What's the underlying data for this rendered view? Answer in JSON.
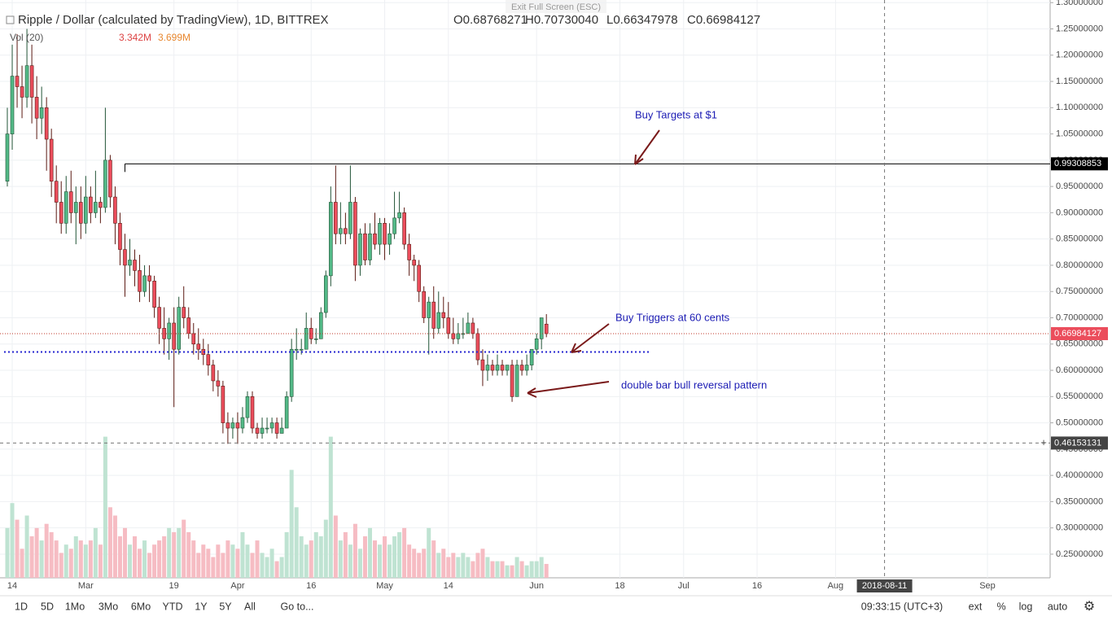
{
  "header": {
    "exit": "Exit Full Screen (ESC)",
    "title": "Ripple / Dollar (calculated by TradingView), 1D, BITTREX",
    "open": "O0.68768271",
    "high": "H0.70730040",
    "low": "L0.66347978",
    "close": "C0.66984127",
    "vol_label": "Vol (20)",
    "vol_value": "3.342M",
    "vol_ma": "3.699M"
  },
  "toolbar": {
    "ranges": [
      "1D",
      "5D",
      "1Mo",
      "3Mo",
      "6Mo",
      "YTD",
      "1Y",
      "5Y",
      "All"
    ],
    "goto": "Go to...",
    "time": "09:33:15 (UTC+3)",
    "options": [
      "ext",
      "%",
      "log",
      "auto"
    ]
  },
  "chart_data": {
    "type": "candlestick",
    "grid": true,
    "ylim": [
      0.205,
      1.305
    ],
    "yticks": [
      {
        "value": 0.25,
        "label": "0.25000000"
      },
      {
        "value": 0.3,
        "label": "0.30000000"
      },
      {
        "value": 0.35,
        "label": "0.35000000"
      },
      {
        "value": 0.4,
        "label": "0.40000000"
      },
      {
        "value": 0.45,
        "label": "0.45000000"
      },
      {
        "value": 0.5,
        "label": "0.50000000"
      },
      {
        "value": 0.55,
        "label": "0.55000000"
      },
      {
        "value": 0.6,
        "label": "0.60000000"
      },
      {
        "value": 0.65,
        "label": "0.65000000"
      },
      {
        "value": 0.7,
        "label": "0.70000000"
      },
      {
        "value": 0.75,
        "label": "0.75000000"
      },
      {
        "value": 0.8,
        "label": "0.80000000"
      },
      {
        "value": 0.85,
        "label": "0.85000000"
      },
      {
        "value": 0.9,
        "label": "0.90000000"
      },
      {
        "value": 0.95,
        "label": "0.95000000"
      },
      {
        "value": 1.0,
        "label": "1.00000000"
      },
      {
        "value": 1.05,
        "label": "1.05000000"
      },
      {
        "value": 1.1,
        "label": "1.10000000"
      },
      {
        "value": 1.15,
        "label": "1.15000000"
      },
      {
        "value": 1.2,
        "label": "1.20000000"
      },
      {
        "value": 1.25,
        "label": "1.25000000"
      },
      {
        "value": 1.3,
        "label": "1.30000000"
      }
    ],
    "xticks": [
      {
        "value": 1,
        "label": "14"
      },
      {
        "value": 16,
        "label": "Mar"
      },
      {
        "value": 34,
        "label": "19"
      },
      {
        "value": 47,
        "label": "Apr"
      },
      {
        "value": 62,
        "label": "16"
      },
      {
        "value": 77,
        "label": "May"
      },
      {
        "value": 90,
        "label": "14"
      },
      {
        "value": 108,
        "label": "Jun"
      },
      {
        "value": 125,
        "label": "18"
      },
      {
        "value": 138,
        "label": "Jul"
      },
      {
        "value": 153,
        "label": "16"
      },
      {
        "value": 169,
        "label": "Aug"
      },
      {
        "value": 200,
        "label": "Sep"
      }
    ],
    "cursor": {
      "x": {
        "value": 179,
        "label": "2018-08-11"
      },
      "y": {
        "value": 0.46153131,
        "label": "0.46153131"
      }
    },
    "resistance": {
      "value": 0.99308853,
      "label": "0.99308853",
      "start": 24
    },
    "last_price": {
      "value": 0.66984127,
      "label": "0.66984127"
    },
    "support": {
      "value": 0.635
    },
    "annotations": [
      "Buy Targets at $1",
      "Buy Triggers at 60 cents",
      "double bar bull reversal pattern"
    ],
    "open": [
      0.96,
      1.05,
      1.16,
      1.14,
      1.12,
      1.18,
      1.12,
      1.08,
      1.1,
      1.04,
      0.96,
      0.92,
      0.88,
      0.94,
      0.9,
      0.92,
      0.88,
      0.93,
      0.9,
      0.92,
      0.91,
      1.0,
      0.93,
      0.88,
      0.83,
      0.8,
      0.81,
      0.79,
      0.75,
      0.78,
      0.77,
      0.72,
      0.68,
      0.66,
      0.69,
      0.64,
      0.72,
      0.7,
      0.67,
      0.65,
      0.64,
      0.63,
      0.61,
      0.58,
      0.57,
      0.5,
      0.49,
      0.5,
      0.49,
      0.51,
      0.55,
      0.49,
      0.48,
      0.49,
      0.49,
      0.5,
      0.48,
      0.49,
      0.55,
      0.64,
      0.64,
      0.64,
      0.68,
      0.66,
      0.66,
      0.71,
      0.78,
      0.92,
      0.86,
      0.87,
      0.86,
      0.92,
      0.8,
      0.86,
      0.81,
      0.86,
      0.84,
      0.88,
      0.84,
      0.86,
      0.89,
      0.9,
      0.84,
      0.81,
      0.8,
      0.75,
      0.7,
      0.73,
      0.68,
      0.71,
      0.7,
      0.67,
      0.66,
      0.67,
      0.67,
      0.69,
      0.67,
      0.62,
      0.6,
      0.61,
      0.6,
      0.61,
      0.6,
      0.61,
      0.55,
      0.61,
      0.6,
      0.61,
      0.64,
      0.66,
      0.688
    ],
    "high": [
      1.1,
      1.22,
      1.24,
      1.18,
      1.25,
      1.22,
      1.16,
      1.14,
      1.12,
      1.06,
      0.99,
      0.96,
      0.97,
      0.98,
      0.95,
      0.95,
      0.97,
      0.95,
      0.98,
      0.93,
      1.1,
      1.01,
      0.95,
      0.9,
      0.86,
      0.85,
      0.83,
      0.82,
      0.8,
      0.8,
      0.78,
      0.74,
      0.72,
      0.7,
      0.72,
      0.74,
      0.76,
      0.72,
      0.69,
      0.68,
      0.66,
      0.65,
      0.62,
      0.6,
      0.58,
      0.52,
      0.51,
      0.52,
      0.53,
      0.56,
      0.56,
      0.5,
      0.51,
      0.51,
      0.51,
      0.51,
      0.51,
      0.56,
      0.66,
      0.68,
      0.66,
      0.71,
      0.7,
      0.68,
      0.72,
      0.79,
      0.95,
      0.99,
      0.92,
      0.9,
      0.99,
      0.93,
      0.87,
      0.88,
      0.88,
      0.9,
      0.89,
      0.89,
      0.88,
      0.94,
      0.94,
      0.91,
      0.86,
      0.82,
      0.81,
      0.76,
      0.74,
      0.76,
      0.75,
      0.74,
      0.73,
      0.7,
      0.69,
      0.7,
      0.71,
      0.7,
      0.68,
      0.64,
      0.63,
      0.62,
      0.63,
      0.62,
      0.61,
      0.62,
      0.62,
      0.62,
      0.63,
      0.64,
      0.67,
      0.7,
      0.707
    ],
    "low": [
      0.95,
      1.02,
      1.1,
      1.08,
      1.1,
      1.07,
      1.04,
      1.05,
      0.98,
      0.93,
      0.88,
      0.86,
      0.86,
      0.88,
      0.84,
      0.85,
      0.86,
      0.88,
      0.89,
      0.88,
      0.9,
      0.91,
      0.84,
      0.8,
      0.74,
      0.78,
      0.76,
      0.73,
      0.74,
      0.73,
      0.7,
      0.65,
      0.63,
      0.62,
      0.53,
      0.63,
      0.68,
      0.66,
      0.63,
      0.62,
      0.61,
      0.59,
      0.56,
      0.55,
      0.48,
      0.46,
      0.47,
      0.46,
      0.48,
      0.5,
      0.48,
      0.47,
      0.47,
      0.48,
      0.48,
      0.47,
      0.48,
      0.49,
      0.54,
      0.62,
      0.63,
      0.64,
      0.65,
      0.65,
      0.66,
      0.7,
      0.76,
      0.84,
      0.84,
      0.84,
      0.85,
      0.77,
      0.78,
      0.8,
      0.8,
      0.83,
      0.82,
      0.81,
      0.82,
      0.85,
      0.88,
      0.83,
      0.78,
      0.77,
      0.73,
      0.69,
      0.63,
      0.66,
      0.67,
      0.68,
      0.66,
      0.65,
      0.65,
      0.66,
      0.67,
      0.66,
      0.61,
      0.57,
      0.58,
      0.59,
      0.59,
      0.59,
      0.59,
      0.54,
      0.55,
      0.59,
      0.59,
      0.6,
      0.63,
      0.64,
      0.663
    ],
    "close": [
      1.05,
      1.16,
      1.14,
      1.12,
      1.18,
      1.12,
      1.08,
      1.1,
      1.04,
      0.96,
      0.92,
      0.88,
      0.94,
      0.9,
      0.92,
      0.88,
      0.93,
      0.9,
      0.92,
      0.91,
      1.0,
      0.93,
      0.88,
      0.83,
      0.8,
      0.81,
      0.79,
      0.75,
      0.78,
      0.77,
      0.72,
      0.68,
      0.66,
      0.69,
      0.64,
      0.72,
      0.7,
      0.67,
      0.65,
      0.64,
      0.63,
      0.61,
      0.58,
      0.57,
      0.5,
      0.49,
      0.5,
      0.49,
      0.51,
      0.55,
      0.49,
      0.48,
      0.49,
      0.49,
      0.5,
      0.48,
      0.49,
      0.55,
      0.64,
      0.64,
      0.64,
      0.68,
      0.66,
      0.66,
      0.71,
      0.78,
      0.92,
      0.86,
      0.87,
      0.86,
      0.92,
      0.8,
      0.86,
      0.81,
      0.86,
      0.84,
      0.88,
      0.84,
      0.86,
      0.89,
      0.9,
      0.84,
      0.81,
      0.8,
      0.75,
      0.7,
      0.73,
      0.68,
      0.71,
      0.7,
      0.67,
      0.66,
      0.67,
      0.67,
      0.69,
      0.67,
      0.62,
      0.6,
      0.61,
      0.6,
      0.61,
      0.6,
      0.61,
      0.55,
      0.61,
      0.6,
      0.61,
      0.64,
      0.66,
      0.7,
      0.66984127
    ],
    "volume": [
      12,
      18,
      14,
      7,
      15,
      10,
      12,
      9,
      13,
      11,
      9,
      6,
      8,
      7,
      10,
      9,
      8,
      9,
      12,
      8,
      34,
      17,
      15,
      10,
      12,
      8,
      10,
      7,
      9,
      6,
      8,
      9,
      10,
      12,
      11,
      12,
      14,
      11,
      9,
      6,
      8,
      7,
      5,
      8,
      6,
      9,
      8,
      7,
      11,
      8,
      6,
      9,
      6,
      5,
      7,
      4,
      5,
      11,
      26,
      17,
      10,
      8,
      9,
      11,
      10,
      14,
      34,
      15,
      9,
      11,
      8,
      13,
      7,
      10,
      12,
      9,
      8,
      10,
      8,
      10,
      11,
      12,
      8,
      7,
      6,
      7,
      12,
      9,
      6,
      7,
      5,
      6,
      5,
      6,
      5,
      4,
      6,
      7,
      5,
      4,
      4,
      4,
      3,
      3,
      5,
      4,
      3,
      4,
      4,
      5,
      3.342
    ]
  }
}
